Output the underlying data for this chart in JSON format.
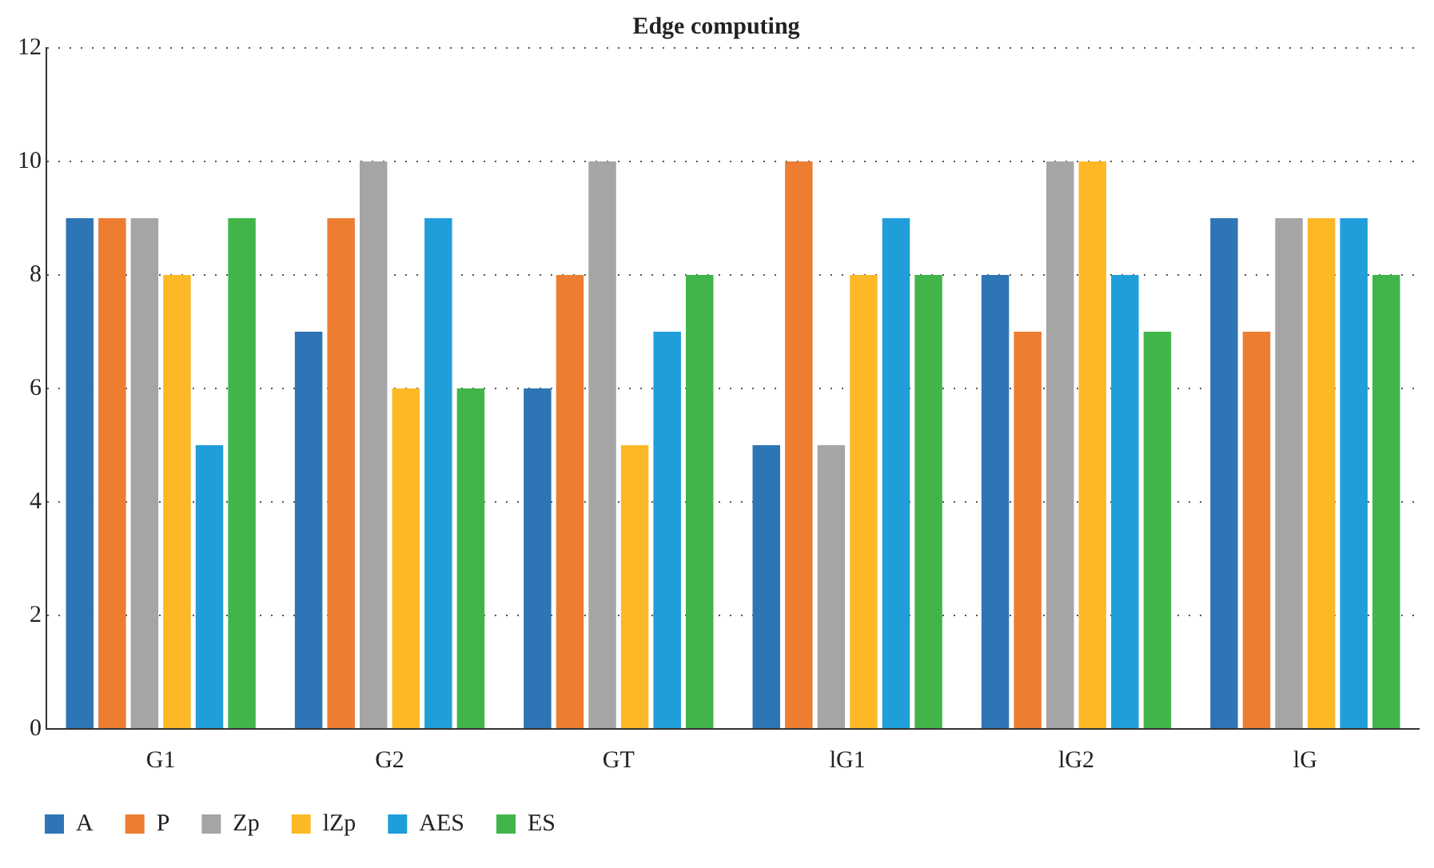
{
  "chart_data": {
    "type": "bar",
    "title": "Edge computing",
    "categories": [
      "G1",
      "G2",
      "GT",
      "lG1",
      "lG2",
      "lG"
    ],
    "series": [
      {
        "name": "A",
        "color": "#2e75b6",
        "values": [
          9,
          7,
          6,
          5,
          8,
          9
        ]
      },
      {
        "name": "P",
        "color": "#ed7d31",
        "values": [
          9,
          9,
          8,
          10,
          7,
          7
        ]
      },
      {
        "name": "Zp",
        "color": "#a5a5a5",
        "values": [
          9,
          10,
          10,
          5,
          10,
          9
        ]
      },
      {
        "name": "lZp",
        "color": "#fdb827",
        "values": [
          8,
          6,
          5,
          8,
          10,
          9
        ]
      },
      {
        "name": "AES",
        "color": "#1f9ed9",
        "values": [
          5,
          9,
          7,
          9,
          8,
          9
        ]
      },
      {
        "name": "ES",
        "color": "#41b549",
        "values": [
          9,
          6,
          8,
          8,
          7,
          8
        ]
      }
    ],
    "ylim": [
      0,
      12
    ],
    "yticks": [
      0,
      2,
      4,
      6,
      8,
      10,
      12
    ],
    "grid": "y",
    "legend": "bottom"
  }
}
